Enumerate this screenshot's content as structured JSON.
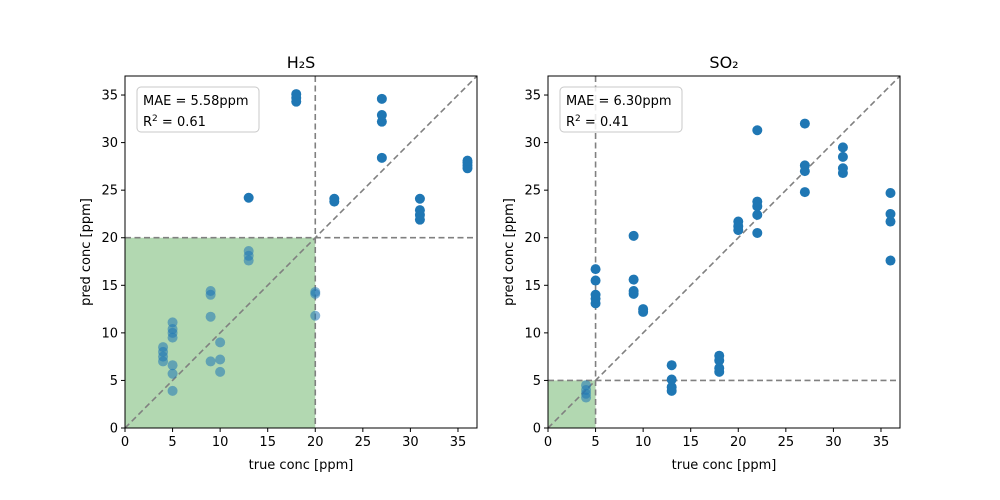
{
  "chart_data": [
    {
      "type": "scatter",
      "title": "H₂S",
      "xlabel": "true conc [ppm]",
      "ylabel": "pred conc [ppm]",
      "xlim": [
        0,
        37
      ],
      "ylim": [
        0,
        37
      ],
      "xticks": [
        0,
        5,
        10,
        15,
        20,
        25,
        30,
        35
      ],
      "yticks": [
        0,
        5,
        10,
        15,
        20,
        25,
        30,
        35
      ],
      "threshold": 20,
      "grid": false,
      "annotation": {
        "mae_text": "MAE = 5.58ppm",
        "r2_prefix": "R",
        "r2_sup": "2",
        "r2_value": " = 0.61"
      },
      "colors": {
        "points": "#1f77b4",
        "region": "#b2d8b1",
        "lines": "#808080"
      },
      "points": [
        [
          4,
          7.0
        ],
        [
          4,
          7.5
        ],
        [
          4,
          8.0
        ],
        [
          4,
          8.5
        ],
        [
          5,
          3.9
        ],
        [
          5,
          5.7
        ],
        [
          5,
          6.6
        ],
        [
          5,
          9.5
        ],
        [
          5,
          10.0
        ],
        [
          5,
          10.4
        ],
        [
          5,
          11.1
        ],
        [
          9,
          7.0
        ],
        [
          9,
          11.7
        ],
        [
          9,
          14.0
        ],
        [
          9,
          14.4
        ],
        [
          10,
          5.9
        ],
        [
          10,
          7.2
        ],
        [
          10,
          9.0
        ],
        [
          13,
          17.6
        ],
        [
          13,
          18.1
        ],
        [
          13,
          18.6
        ],
        [
          13,
          24.2
        ],
        [
          18,
          34.3
        ],
        [
          18,
          34.7
        ],
        [
          18,
          35.1
        ],
        [
          20,
          11.8
        ],
        [
          20,
          14.1
        ],
        [
          20,
          14.3
        ],
        [
          22,
          23.8
        ],
        [
          22,
          24.1
        ],
        [
          27,
          28.4
        ],
        [
          27,
          32.2
        ],
        [
          27,
          32.9
        ],
        [
          27,
          34.6
        ],
        [
          31,
          21.9
        ],
        [
          31,
          22.4
        ],
        [
          31,
          22.9
        ],
        [
          31,
          24.1
        ],
        [
          36,
          27.3
        ],
        [
          36,
          27.6
        ],
        [
          36,
          27.9
        ],
        [
          36,
          28.1
        ]
      ]
    },
    {
      "type": "scatter",
      "title": "SO₂",
      "xlabel": "true conc [ppm]",
      "ylabel": "pred conc [ppm]",
      "xlim": [
        0,
        37
      ],
      "ylim": [
        0,
        37
      ],
      "xticks": [
        0,
        5,
        10,
        15,
        20,
        25,
        30,
        35
      ],
      "yticks": [
        0,
        5,
        10,
        15,
        20,
        25,
        30,
        35
      ],
      "threshold": 5,
      "grid": false,
      "annotation": {
        "mae_text": "MAE = 6.30ppm",
        "r2_prefix": "R",
        "r2_sup": "2",
        "r2_value": " = 0.41"
      },
      "colors": {
        "points": "#1f77b4",
        "region": "#b2d8b1",
        "lines": "#808080"
      },
      "points": [
        [
          4,
          3.2
        ],
        [
          4,
          3.6
        ],
        [
          4,
          4.0
        ],
        [
          4,
          4.5
        ],
        [
          5,
          13.1
        ],
        [
          5,
          13.6
        ],
        [
          5,
          14.0
        ],
        [
          5,
          15.5
        ],
        [
          5,
          16.7
        ],
        [
          9,
          14.1
        ],
        [
          9,
          14.4
        ],
        [
          9,
          15.6
        ],
        [
          9,
          20.2
        ],
        [
          10,
          12.2
        ],
        [
          10,
          12.5
        ],
        [
          13,
          3.9
        ],
        [
          13,
          4.3
        ],
        [
          13,
          5.1
        ],
        [
          13,
          6.6
        ],
        [
          18,
          5.9
        ],
        [
          18,
          6.3
        ],
        [
          18,
          7.1
        ],
        [
          18,
          7.6
        ],
        [
          20,
          20.8
        ],
        [
          20,
          21.2
        ],
        [
          20,
          21.7
        ],
        [
          22,
          20.5
        ],
        [
          22,
          22.4
        ],
        [
          22,
          23.3
        ],
        [
          22,
          23.8
        ],
        [
          22,
          31.3
        ],
        [
          27,
          24.8
        ],
        [
          27,
          27.0
        ],
        [
          27,
          27.6
        ],
        [
          27,
          32.0
        ],
        [
          31,
          26.8
        ],
        [
          31,
          27.3
        ],
        [
          31,
          28.5
        ],
        [
          31,
          29.5
        ],
        [
          36,
          17.6
        ],
        [
          36,
          21.7
        ],
        [
          36,
          22.5
        ],
        [
          36,
          24.7
        ]
      ]
    }
  ]
}
